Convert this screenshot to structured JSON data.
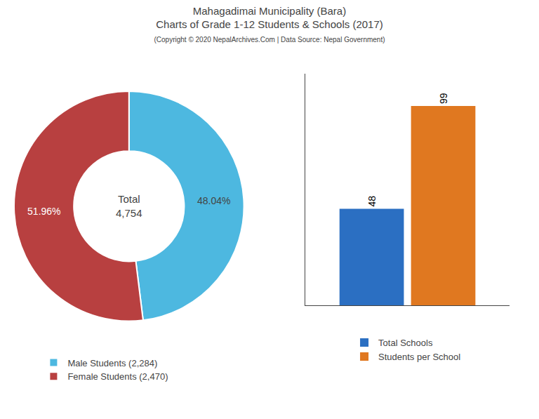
{
  "title": [
    "Mahagadimai Municipality (Bara)",
    "Charts of Grade 1-12 Students & Schools (2017)"
  ],
  "subtitle": "(Copyright © 2020 NepalArchives.Com | Data Source: Nepal Government)",
  "chart_data": [
    {
      "type": "pie",
      "categories": [
        "Male Students (2,284)",
        "Female Students (2,470)"
      ],
      "values": [
        48.04,
        51.96
      ],
      "value_labels": [
        "48.04%",
        "51.96%"
      ],
      "data_labels": true,
      "colors": [
        "#4db8e0",
        "#b84040"
      ],
      "annotations": [
        "Total",
        "4,754"
      ],
      "legend": "bottom"
    },
    {
      "type": "bar",
      "categories": [
        null
      ],
      "series": [
        {
          "name": "Total Schools",
          "color": "#2b6fc2",
          "values": [
            48
          ]
        },
        {
          "name": "Students per School",
          "color": "#e07820",
          "values": [
            99
          ]
        }
      ],
      "ylim": [
        0,
        115
      ],
      "grid": false,
      "data_labels": true,
      "tick_labels": false,
      "legend": "bottom"
    }
  ]
}
